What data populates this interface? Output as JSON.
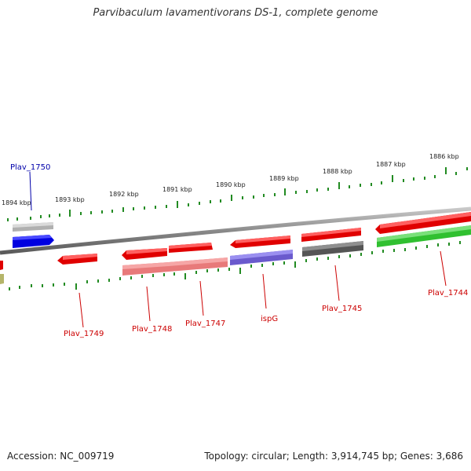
{
  "title": "Parvibaculum lavamentivorans DS-1, complete genome",
  "footer": {
    "accession": "Accession: NC_009719",
    "summary": "Topology: circular; Length: 3,914,745 bp; Genes: 3,686"
  },
  "scale": {
    "ticks": [
      "1894 kbp",
      "1893 kbp",
      "1892 kbp",
      "1891 kbp",
      "1890 kbp",
      "1889 kbp",
      "1888 kbp",
      "1887 kbp",
      "1886 kbp"
    ]
  },
  "colors": {
    "backbone": "#8c8c8c",
    "tick": "#228b22",
    "cds_red": "#ee0000",
    "label_red": "#cc0000",
    "label_blue": "#0000aa",
    "gene_grey": "#aaaaaa",
    "gene_blue": "#0000e0",
    "gene_pink": "#f08080",
    "gene_purple": "#6a5acd",
    "gene_dark": "#555555",
    "gene_green": "#32cd32",
    "gene_olive": "#b5b56a"
  },
  "labels": {
    "plav_1750": "Plav_1750",
    "plav_1749": "Plav_1749",
    "plav_1748": "Plav_1748",
    "plav_1747": "Plav_1747",
    "ispg": "ispG",
    "plav_1745": "Plav_1745",
    "plav_1744": "Plav_1744"
  }
}
